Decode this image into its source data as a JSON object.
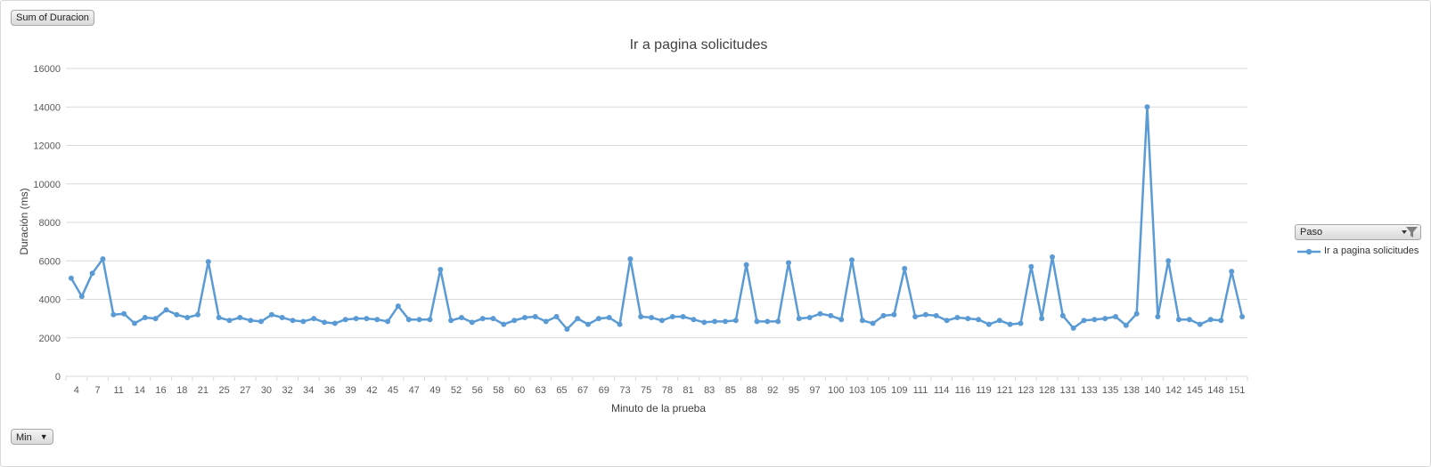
{
  "pivot": {
    "value_field": "Sum of Duracion",
    "filter_field": "Min",
    "legend_field": "Paso"
  },
  "colors": {
    "series": "#5b9bd5",
    "grid": "#d9d9d9",
    "axis_text": "#595959"
  },
  "chart_data": {
    "type": "line",
    "title": "Ir a pagina solicitudes",
    "xlabel": "Minuto de la prueba",
    "ylabel": "Duración (ms)",
    "ylim": [
      0,
      16000
    ],
    "yticks": [
      0,
      2000,
      4000,
      6000,
      8000,
      10000,
      12000,
      14000,
      16000
    ],
    "grid": true,
    "legend_position": "right",
    "x_tick_labels": [
      "4",
      "7",
      "11",
      "14",
      "16",
      "18",
      "21",
      "25",
      "27",
      "30",
      "32",
      "34",
      "36",
      "39",
      "42",
      "45",
      "47",
      "49",
      "52",
      "56",
      "58",
      "60",
      "63",
      "65",
      "67",
      "69",
      "73",
      "75",
      "78",
      "81",
      "83",
      "85",
      "88",
      "92",
      "95",
      "97",
      "100",
      "103",
      "105",
      "109",
      "111",
      "114",
      "116",
      "119",
      "121",
      "123",
      "128",
      "131",
      "133",
      "135",
      "138",
      "140",
      "142",
      "145",
      "148",
      "151"
    ],
    "series": [
      {
        "name": "Ir a pagina solicitudes",
        "values": [
          5100,
          4150,
          5350,
          6100,
          3200,
          3250,
          2750,
          3050,
          3000,
          3450,
          3200,
          3050,
          3200,
          5950,
          3050,
          2900,
          3050,
          2900,
          2850,
          3200,
          3050,
          2900,
          2850,
          3000,
          2800,
          2750,
          2950,
          3000,
          3000,
          2950,
          2850,
          3650,
          2950,
          2950,
          2950,
          5550,
          2900,
          3050,
          2800,
          3000,
          3000,
          2700,
          2900,
          3050,
          3100,
          2850,
          3100,
          2450,
          3000,
          2700,
          3000,
          3050,
          2700,
          6100,
          3100,
          3050,
          2900,
          3100,
          3100,
          2950,
          2800,
          2850,
          2850,
          2900,
          5800,
          2850,
          2850,
          2850,
          5900,
          3000,
          3050,
          3250,
          3150,
          2950,
          6050,
          2900,
          2750,
          3150,
          3200,
          5600,
          3100,
          3200,
          3150,
          2900,
          3050,
          3000,
          2950,
          2700,
          2900,
          2700,
          2750,
          5700,
          3000,
          6200,
          3150,
          2500,
          2900,
          2950,
          3000,
          3100,
          2650,
          3250,
          14000,
          3100,
          6000,
          2950,
          2950,
          2700,
          2950,
          2900,
          5450,
          3100
        ]
      }
    ]
  }
}
